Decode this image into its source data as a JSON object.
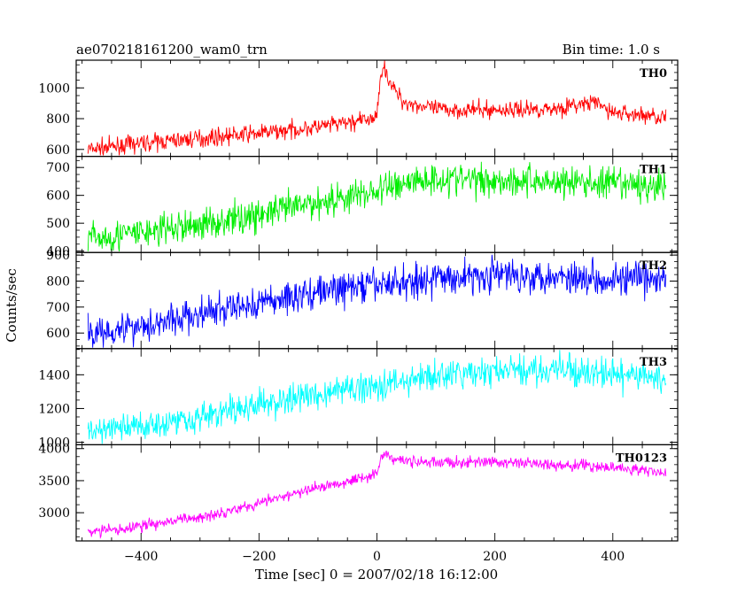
{
  "chart_data": {
    "type": "line",
    "title": "ae070218161200_wam0_trn",
    "bin_time": "Bin time: 1.0 s",
    "xlabel": "Time [sec] 0 = 2007/02/18 16:12:00",
    "ylabel": "Counts/sec",
    "xlim": [
      -510,
      510
    ],
    "x_ticks": [
      -400,
      -200,
      0,
      200,
      400
    ],
    "x_tick_labels": [
      "−400",
      "−200",
      "0",
      "200",
      "400"
    ],
    "x_start": -490,
    "x_end": 490,
    "panels": [
      {
        "name": "TH0",
        "color": "#ff0000",
        "ylim": [
          555,
          1180
        ],
        "y_ticks": [
          600,
          800,
          1000
        ],
        "y_tick_labels": [
          "600",
          "800",
          "1000"
        ],
        "noise": 28,
        "profile": [
          [
            -490,
            600
          ],
          [
            -450,
            615
          ],
          [
            -400,
            640
          ],
          [
            -300,
            672
          ],
          [
            -200,
            705
          ],
          [
            -100,
            745
          ],
          [
            -20,
            790
          ],
          [
            0,
            805
          ],
          [
            5,
            1080
          ],
          [
            12,
            1140
          ],
          [
            25,
            1010
          ],
          [
            45,
            910
          ],
          [
            100,
            860
          ],
          [
            200,
            855
          ],
          [
            300,
            865
          ],
          [
            370,
            905
          ],
          [
            400,
            840
          ],
          [
            490,
            810
          ]
        ]
      },
      {
        "name": "TH1",
        "color": "#00ee00",
        "ylim": [
          395,
          740
        ],
        "y_ticks": [
          400,
          500,
          600,
          700
        ],
        "y_tick_labels": [
          "400",
          "500",
          "600",
          "700"
        ],
        "noise": 30,
        "profile": [
          [
            -490,
            445
          ],
          [
            -400,
            465
          ],
          [
            -300,
            495
          ],
          [
            -200,
            530
          ],
          [
            -100,
            575
          ],
          [
            0,
            615
          ],
          [
            50,
            650
          ],
          [
            100,
            660
          ],
          [
            200,
            655
          ],
          [
            300,
            650
          ],
          [
            400,
            640
          ],
          [
            490,
            630
          ]
        ]
      },
      {
        "name": "TH2",
        "color": "#0000ff",
        "ylim": [
          540,
          910
        ],
        "y_ticks": [
          600,
          700,
          800,
          900
        ],
        "y_tick_labels": [
          "600",
          "700",
          "800",
          "900"
        ],
        "noise": 33,
        "profile": [
          [
            -490,
            600
          ],
          [
            -400,
            630
          ],
          [
            -300,
            670
          ],
          [
            -200,
            715
          ],
          [
            -100,
            760
          ],
          [
            0,
            785
          ],
          [
            100,
            810
          ],
          [
            200,
            825
          ],
          [
            300,
            820
          ],
          [
            400,
            810
          ],
          [
            490,
            805
          ]
        ]
      },
      {
        "name": "TH3",
        "color": "#00ffff",
        "ylim": [
          985,
          1555
        ],
        "y_ticks": [
          1000,
          1200,
          1400
        ],
        "y_tick_labels": [
          "1000",
          "1200",
          "1400"
        ],
        "noise": 45,
        "profile": [
          [
            -490,
            1060
          ],
          [
            -400,
            1100
          ],
          [
            -300,
            1150
          ],
          [
            -200,
            1220
          ],
          [
            -100,
            1285
          ],
          [
            0,
            1340
          ],
          [
            100,
            1390
          ],
          [
            200,
            1420
          ],
          [
            300,
            1430
          ],
          [
            400,
            1400
          ],
          [
            490,
            1380
          ]
        ]
      },
      {
        "name": "TH0123",
        "color": "#ff00ff",
        "ylim": [
          2560,
          4060
        ],
        "y_ticks": [
          3000,
          3500,
          4000
        ],
        "y_tick_labels": [
          "3000",
          "3500",
          "4000"
        ],
        "noise": 45,
        "profile": [
          [
            -490,
            2700
          ],
          [
            -430,
            2740
          ],
          [
            -400,
            2800
          ],
          [
            -300,
            2930
          ],
          [
            -200,
            3150
          ],
          [
            -100,
            3390
          ],
          [
            -20,
            3560
          ],
          [
            0,
            3620
          ],
          [
            8,
            3880
          ],
          [
            15,
            3940
          ],
          [
            30,
            3820
          ],
          [
            100,
            3780
          ],
          [
            200,
            3790
          ],
          [
            300,
            3750
          ],
          [
            400,
            3710
          ],
          [
            490,
            3620
          ]
        ]
      }
    ]
  }
}
